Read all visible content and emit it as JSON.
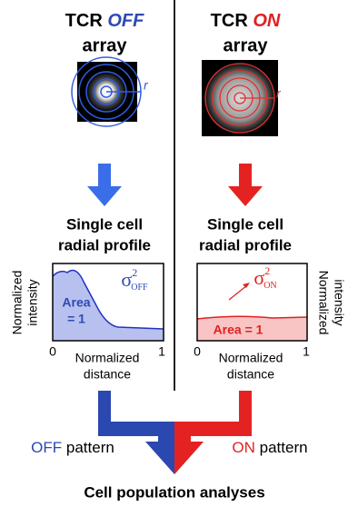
{
  "left": {
    "title_prefix": "TCR",
    "title_state": "OFF",
    "title_suffix": "array",
    "radius_label": "r",
    "subtitle_lines": [
      "Single cell",
      "radial profile"
    ],
    "y_label_lines": [
      "Normalized",
      "intensity"
    ],
    "variance": {
      "symbol": "σ",
      "superscript": "2",
      "subscript": "OFF"
    },
    "area_label_lines": [
      "Area",
      "= 1"
    ],
    "x_ticks": [
      "0",
      "1"
    ],
    "x_label_lines": [
      "Normalized",
      "distance"
    ],
    "pattern_state": "OFF",
    "pattern_word": "pattern"
  },
  "right": {
    "title_prefix": "TCR",
    "title_state": "ON",
    "title_suffix": "array",
    "radius_label": "r",
    "subtitle_lines": [
      "Single cell",
      "radial profile"
    ],
    "y_label_lines": [
      "Normalized",
      "intensity"
    ],
    "variance": {
      "symbol": "σ",
      "superscript": "2",
      "subscript": "ON"
    },
    "area_label_lines": [
      "Area = 1"
    ],
    "x_ticks": [
      "0",
      "1"
    ],
    "x_label_lines": [
      "Normalized",
      "distance"
    ],
    "pattern_state": "ON",
    "pattern_word": "pattern"
  },
  "footer": "Cell population analyses"
}
